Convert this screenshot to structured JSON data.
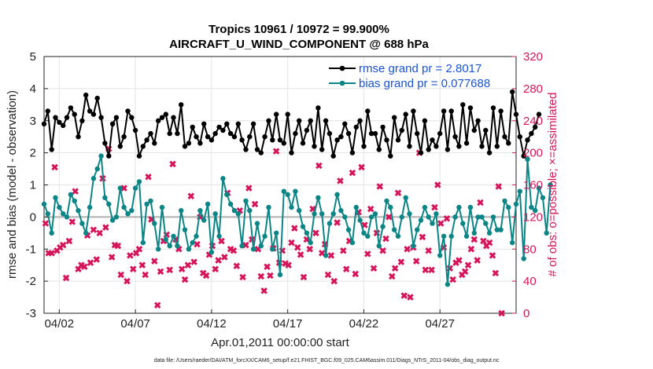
{
  "colors": {
    "rmse": "#000000",
    "bias": "#0b8585",
    "obs": "#d6145a",
    "zero_line": "#b0b0b0",
    "legend_text": "#1a53d6",
    "grid": "#e4e4e4"
  },
  "chart_data": {
    "type": "line",
    "title": "Tropics 10961 / 10972 = 99.900%",
    "subtitle": "AIRCRAFT_U_WIND_COMPONENT @ 688 hPa",
    "xlabel": "Apr.01,2011 00:00:00 start",
    "ylabel": "rmse and bias (model - observation)",
    "y2label": "# of obs: o=possible; ×=assimilated",
    "ylim": [
      -3,
      5
    ],
    "y2lim": [
      0,
      320
    ],
    "xlim": [
      0,
      31
    ],
    "grid": true,
    "legend_position": "top-right",
    "yticks": [
      "-3",
      "-2",
      "-1",
      "0",
      "1",
      "2",
      "3",
      "4",
      "5"
    ],
    "y2ticks": [
      "0",
      "40",
      "80",
      "120",
      "160",
      "200",
      "240",
      "280",
      "320"
    ],
    "xticks": [
      {
        "label": "04/02",
        "day": 1.0
      },
      {
        "label": "04/07",
        "day": 6.0
      },
      {
        "label": "04/12",
        "day": 11.0
      },
      {
        "label": "04/17",
        "day": 16.0
      },
      {
        "label": "04/22",
        "day": 21.0
      },
      {
        "label": "04/27",
        "day": 26.0
      }
    ],
    "series": [
      {
        "name": "rmse grand pr = 2.8017",
        "axis": "left",
        "x_start_day": 0.0,
        "x_step_day": 0.25,
        "values": [
          2.9,
          3.3,
          2.1,
          3.1,
          2.95,
          2.85,
          3.1,
          3.4,
          3.2,
          2.5,
          3.0,
          3.8,
          3.3,
          3.2,
          3.7,
          3.1,
          2.3,
          1.9,
          2.9,
          3.1,
          2.2,
          2.5,
          3.3,
          3.1,
          2.7,
          1.9,
          2.2,
          2.4,
          2.6,
          2.3,
          3.0,
          3.1,
          3.2,
          2.6,
          3.1,
          2.6,
          3.5,
          2.2,
          2.3,
          2.8,
          2.5,
          2.3,
          2.9,
          2.5,
          2.4,
          2.6,
          2.8,
          2.7,
          2.9,
          2.6,
          2.5,
          2.9,
          2.4,
          2.1,
          2.5,
          2.9,
          2.1,
          2.0,
          2.5,
          3.0,
          2.4,
          3.2,
          2.4,
          2.3,
          3.2,
          2.0,
          2.6,
          3.0,
          2.3,
          2.7,
          3.0,
          2.2,
          3.4,
          2.1,
          3.0,
          2.6,
          1.9,
          2.4,
          2.5,
          2.9,
          2.6,
          2.0,
          2.8,
          3.0,
          2.2,
          3.3,
          2.6,
          2.6,
          2.1,
          2.8,
          2.4,
          1.9,
          3.1,
          2.4,
          2.7,
          3.2,
          2.2,
          3.3,
          2.6,
          2.0,
          3.0,
          2.1,
          2.4,
          2.2,
          2.6,
          3.3,
          2.1,
          3.3,
          2.5,
          2.2,
          3.5,
          2.3,
          3.4,
          2.7,
          3.0,
          2.2,
          2.7,
          2.0,
          3.4,
          2.2,
          3.3,
          2.5,
          2.3,
          3.9,
          3.2,
          2.5,
          1.9,
          2.4,
          2.6,
          2.8,
          3.2
        ]
      },
      {
        "name": "bias grand pr = 0.077688",
        "axis": "left",
        "x_start_day": 0.0,
        "x_step_day": 0.25,
        "values": [
          0.4,
          0.1,
          -0.5,
          0.6,
          0.3,
          0.1,
          0.0,
          0.7,
          0.5,
          0.2,
          -0.2,
          -0.5,
          0.3,
          1.2,
          1.5,
          1.9,
          0.6,
          0.4,
          -0.1,
          0.0,
          0.9,
          0.3,
          0.1,
          0.2,
          0.9,
          1.1,
          -0.8,
          0.4,
          0.5,
          -0.2,
          -1.0,
          0.3,
          -0.7,
          -0.9,
          -0.6,
          -0.9,
          0.2,
          -0.4,
          -1.0,
          -0.8,
          -0.6,
          0.2,
          -0.1,
          0.4,
          -1.1,
          0.1,
          -0.6,
          1.2,
          0.7,
          0.4,
          0.2,
          0.1,
          -0.9,
          0.5,
          0.2,
          -1.0,
          -0.2,
          -0.9,
          -0.6,
          0.3,
          -1.0,
          -0.5,
          -1.8,
          0.8,
          0.7,
          0.3,
          0.8,
          0.2,
          -0.3,
          -0.5,
          -0.8,
          0.1,
          0.6,
          0.1,
          -1.2,
          -0.2,
          0.1,
          0.7,
          0.2,
          0.0,
          -0.4,
          -0.8,
          0.3,
          -0.1,
          -0.5,
          -0.6,
          0.0,
          0.1,
          -0.9,
          -0.3,
          0.5,
          0.3,
          -0.4,
          -0.6,
          0.0,
          0.6,
          0.1,
          -0.9,
          -0.4,
          -0.1,
          0.3,
          0.0,
          -0.2,
          0.1,
          -1.2,
          -0.6,
          -2.1,
          -0.6,
          0.0,
          0.3,
          -0.2,
          -0.6,
          0.3,
          -0.5,
          0.0,
          0.0,
          -0.2,
          -0.5,
          0.0,
          -0.4,
          -0.4,
          0.5,
          0.3,
          -0.8,
          0.4,
          0.8,
          -1.3,
          1.8,
          0.3,
          0.2,
          0.9,
          0.6,
          -0.5,
          1.0
        ]
      },
      {
        "name": "# of obs assimilated",
        "axis": "right",
        "marker": "x",
        "points": [
          [
            0.1,
            112
          ],
          [
            0.3,
            75
          ],
          [
            0.5,
            75
          ],
          [
            0.7,
            182
          ],
          [
            0.85,
            78
          ],
          [
            1.05,
            82
          ],
          [
            1.25,
            85
          ],
          [
            1.45,
            44
          ],
          [
            1.65,
            90
          ],
          [
            1.85,
            114
          ],
          [
            2.05,
            152
          ],
          [
            2.25,
            55
          ],
          [
            2.45,
            60
          ],
          [
            2.65,
            58
          ],
          [
            2.85,
            97
          ],
          [
            3.05,
            63
          ],
          [
            3.25,
            104
          ],
          [
            3.45,
            67
          ],
          [
            3.65,
            100
          ],
          [
            3.85,
            168
          ],
          [
            4.05,
            107
          ],
          [
            4.25,
            205
          ],
          [
            4.45,
            70
          ],
          [
            4.65,
            85
          ],
          [
            4.85,
            84
          ],
          [
            5.05,
            48
          ],
          [
            5.25,
            156
          ],
          [
            5.45,
            40
          ],
          [
            5.65,
            72
          ],
          [
            5.85,
            55
          ],
          [
            6.05,
            75
          ],
          [
            6.25,
            80
          ],
          [
            6.45,
            60
          ],
          [
            6.65,
            48
          ],
          [
            6.85,
            170
          ],
          [
            7.05,
            117
          ],
          [
            7.25,
            65
          ],
          [
            7.45,
            10
          ],
          [
            7.65,
            52
          ],
          [
            7.85,
            90
          ],
          [
            8.05,
            98
          ],
          [
            8.25,
            54
          ],
          [
            8.45,
            186
          ],
          [
            8.65,
            92
          ],
          [
            8.85,
            80
          ],
          [
            9.05,
            55
          ],
          [
            9.25,
            42
          ],
          [
            9.45,
            60
          ],
          [
            9.65,
            146
          ],
          [
            9.85,
            64
          ],
          [
            10.05,
            86
          ],
          [
            10.25,
            120
          ],
          [
            10.45,
            50
          ],
          [
            10.65,
            47
          ],
          [
            10.85,
            73
          ],
          [
            11.05,
            84
          ],
          [
            11.25,
            55
          ],
          [
            11.45,
            66
          ],
          [
            11.65,
            90
          ],
          [
            11.85,
            70
          ],
          [
            12.05,
            150
          ],
          [
            12.25,
            80
          ],
          [
            12.45,
            78
          ],
          [
            12.65,
            59
          ],
          [
            12.85,
            128
          ],
          [
            13.05,
            45
          ],
          [
            13.25,
            85
          ],
          [
            13.45,
            156
          ],
          [
            13.65,
            92
          ],
          [
            13.85,
            136
          ],
          [
            14.05,
            80
          ],
          [
            14.25,
            46
          ],
          [
            14.45,
            28
          ],
          [
            14.65,
            58
          ],
          [
            14.85,
            47
          ],
          [
            15.05,
            81
          ],
          [
            15.25,
            202
          ],
          [
            15.45,
            63
          ],
          [
            15.65,
            78
          ],
          [
            15.85,
            62
          ],
          [
            16.05,
            60
          ],
          [
            16.25,
            88
          ],
          [
            16.45,
            106
          ],
          [
            16.65,
            82
          ],
          [
            16.85,
            73
          ],
          [
            17.05,
            45
          ],
          [
            17.25,
            92
          ],
          [
            17.45,
            80
          ],
          [
            17.65,
            130
          ],
          [
            17.85,
            100
          ],
          [
            18.05,
            184
          ],
          [
            18.25,
            75
          ],
          [
            18.45,
            86
          ],
          [
            18.65,
            48
          ],
          [
            18.85,
            72
          ],
          [
            19.05,
            40
          ],
          [
            19.25,
            113
          ],
          [
            19.45,
            165
          ],
          [
            19.65,
            78
          ],
          [
            19.85,
            55
          ],
          [
            20.05,
            90
          ],
          [
            20.25,
            175
          ],
          [
            20.45,
            49
          ],
          [
            20.65,
            126
          ],
          [
            20.85,
            182
          ],
          [
            21.05,
            110
          ],
          [
            21.25,
            74
          ],
          [
            21.45,
            130
          ],
          [
            21.65,
            56
          ],
          [
            21.85,
            100
          ],
          [
            22.05,
            158
          ],
          [
            22.25,
            78
          ],
          [
            22.45,
            93
          ],
          [
            22.65,
            120
          ],
          [
            22.85,
            46
          ],
          [
            23.05,
            56
          ],
          [
            23.25,
            150
          ],
          [
            23.45,
            64
          ],
          [
            23.65,
            22
          ],
          [
            23.85,
            80
          ],
          [
            24.05,
            20
          ],
          [
            24.25,
            82
          ],
          [
            24.45,
            65
          ],
          [
            24.65,
            200
          ],
          [
            24.85,
            95
          ],
          [
            25.05,
            54
          ],
          [
            25.25,
            78
          ],
          [
            25.45,
            54
          ],
          [
            25.65,
            132
          ],
          [
            25.85,
            160
          ],
          [
            26.05,
            112
          ],
          [
            26.25,
            82
          ],
          [
            26.45,
            118
          ],
          [
            26.65,
            56
          ],
          [
            26.85,
            42
          ],
          [
            27.05,
            63
          ],
          [
            27.25,
            66
          ],
          [
            27.45,
            48
          ],
          [
            27.65,
            52
          ],
          [
            27.85,
            60
          ],
          [
            28.05,
            80
          ],
          [
            28.25,
            92
          ],
          [
            28.45,
            66
          ],
          [
            28.65,
            138
          ],
          [
            28.85,
            90
          ],
          [
            29.05,
            84
          ],
          [
            29.25,
            88
          ],
          [
            29.45,
            72
          ],
          [
            29.65,
            50
          ],
          [
            29.85,
            158
          ],
          [
            30.05,
            0
          ]
        ]
      }
    ],
    "footnote": "data file: /Users/raeder/DAI/ATM_forcXX/CAM6_setup/f.e21.FHIST_BGC.f09_025.CAM6assim.011/Diags_NTrS_2011-04/obs_diag_output.nc"
  }
}
